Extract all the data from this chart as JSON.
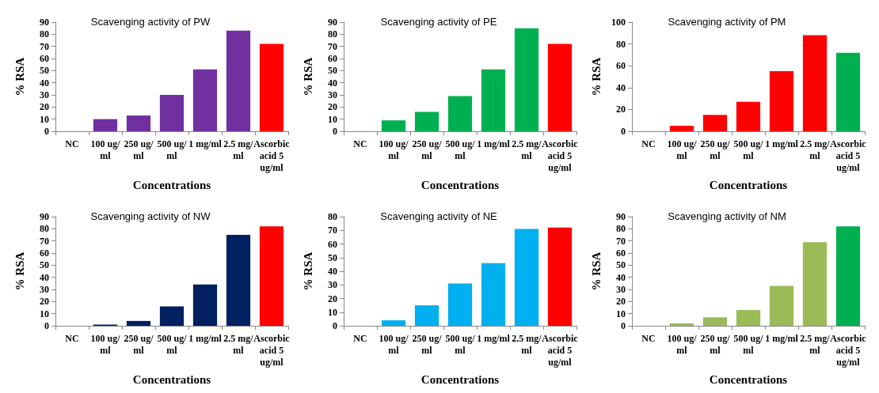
{
  "chart_data": [
    {
      "type": "bar",
      "title": "Scavenging activity of PW",
      "xlabel": "Concentrations",
      "ylabel": "% RSA",
      "categories": [
        "NC",
        "100 ug/ml",
        "250 ug/ml",
        "500 ug/ml",
        "1 mg/ml",
        "2.5 mg/ml",
        "Ascorbic acid 5 ug/ml"
      ],
      "values": [
        0,
        10,
        13,
        30,
        51,
        83,
        72
      ],
      "colors": [
        "#7030a0",
        "#7030a0",
        "#7030a0",
        "#7030a0",
        "#7030a0",
        "#7030a0",
        "#ff0000"
      ],
      "ylim": [
        0,
        90
      ],
      "yticks": [
        0,
        10,
        20,
        30,
        40,
        50,
        60,
        70,
        80,
        90
      ]
    },
    {
      "type": "bar",
      "title": "Scavenging activity of PE",
      "xlabel": "Concentrations",
      "ylabel": "% RSA",
      "categories": [
        "NC",
        "100 ug/ml",
        "250 ug/ml",
        "500 ug/ml",
        "1 mg/ml",
        "2.5 mg/ml",
        "Ascorbic acid 5 ug/ml"
      ],
      "values": [
        0,
        9,
        16,
        29,
        51,
        85,
        72
      ],
      "colors": [
        "#00b050",
        "#00b050",
        "#00b050",
        "#00b050",
        "#00b050",
        "#00b050",
        "#ff0000"
      ],
      "ylim": [
        0,
        90
      ],
      "yticks": [
        0,
        10,
        20,
        30,
        40,
        50,
        60,
        70,
        80,
        90
      ]
    },
    {
      "type": "bar",
      "title": "Scavenging activity of PM",
      "xlabel": "Concentrations",
      "ylabel": "% RSA",
      "categories": [
        "NC",
        "100 ug/ml",
        "250 ug/ml",
        "500 ug/ml",
        "1 mg/ml",
        "2.5 mg/ml",
        "Ascorbic acid 5 ug/ml"
      ],
      "values": [
        0,
        5,
        15,
        27,
        55,
        88,
        72
      ],
      "colors": [
        "#ff0000",
        "#ff0000",
        "#ff0000",
        "#ff0000",
        "#ff0000",
        "#ff0000",
        "#00b050"
      ],
      "ylim": [
        0,
        100
      ],
      "yticks": [
        0,
        20,
        40,
        60,
        80,
        100
      ]
    },
    {
      "type": "bar",
      "title": "Scavenging activity of NW",
      "xlabel": "Concentrations",
      "ylabel": "% RSA",
      "categories": [
        "NC",
        "100 ug/ml",
        "250 ug/ml",
        "500 ug/ml",
        "1 mg/ml",
        "2.5 mg/ml",
        "Ascorbic acid 5 ug/ml"
      ],
      "values": [
        0,
        1,
        4,
        16,
        34,
        75,
        82
      ],
      "colors": [
        "#002060",
        "#002060",
        "#002060",
        "#002060",
        "#002060",
        "#002060",
        "#ff0000"
      ],
      "ylim": [
        0,
        90
      ],
      "yticks": [
        0,
        10,
        20,
        30,
        40,
        50,
        60,
        70,
        80,
        90
      ]
    },
    {
      "type": "bar",
      "title": "Scavenging activity of NE",
      "xlabel": "Concentrations",
      "ylabel": "% RSA",
      "categories": [
        "NC",
        "100 ug/ml",
        "250 ug/ml",
        "500 ug/ml",
        "1 mg/ml",
        "2.5 mg/ml",
        "Ascorbic acid 5 ug/ml"
      ],
      "values": [
        0,
        4,
        15,
        31,
        46,
        71,
        72
      ],
      "colors": [
        "#00b0f0",
        "#00b0f0",
        "#00b0f0",
        "#00b0f0",
        "#00b0f0",
        "#00b0f0",
        "#ff0000"
      ],
      "ylim": [
        0,
        80
      ],
      "yticks": [
        0,
        10,
        20,
        30,
        40,
        50,
        60,
        70,
        80
      ]
    },
    {
      "type": "bar",
      "title": "Scavenging activity of NM",
      "xlabel": "Concentrations",
      "ylabel": "% RSA",
      "categories": [
        "NC",
        "100 ug/ml",
        "250 ug/ml",
        "500 ug/ml",
        "1 mg/ml",
        "2.5 mg/ml",
        "Ascorbic acid 5 ug/ml"
      ],
      "values": [
        0,
        2,
        7,
        13,
        33,
        69,
        82
      ],
      "colors": [
        "#9bbb59",
        "#9bbb59",
        "#9bbb59",
        "#9bbb59",
        "#9bbb59",
        "#9bbb59",
        "#00b050"
      ],
      "ylim": [
        0,
        90
      ],
      "yticks": [
        0,
        10,
        20,
        30,
        40,
        50,
        60,
        70,
        80,
        90
      ]
    }
  ]
}
